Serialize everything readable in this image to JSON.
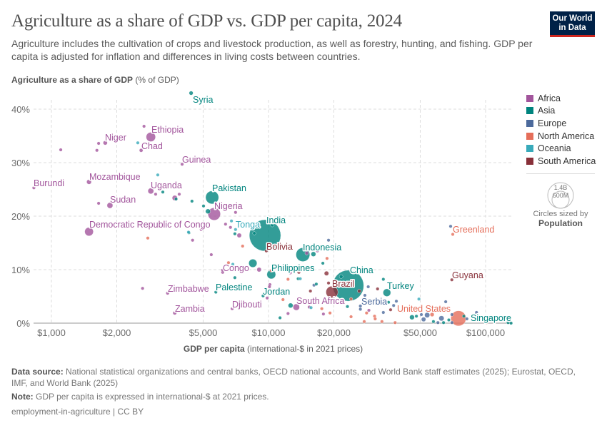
{
  "header": {
    "title": "Agriculture as a share of GDP vs. GDP per capita, 2024",
    "subtitle": "Agriculture includes the cultivation of crops and livestock production, as well as forestry, hunting, and fishing. GDP per capita is adjusted for inflation and differences in living costs between countries.",
    "logo_line1": "Our World",
    "logo_line2": "in Data"
  },
  "legend": {
    "items": [
      {
        "label": "Africa",
        "color": "#a2559c"
      },
      {
        "label": "Asia",
        "color": "#00847e"
      },
      {
        "label": "Europe",
        "color": "#4c6a9c"
      },
      {
        "label": "North America",
        "color": "#e56e5a"
      },
      {
        "label": "Oceania",
        "color": "#38aaba"
      },
      {
        "label": "South America",
        "color": "#883039"
      }
    ],
    "size_big": "1.4B",
    "size_small": "600M",
    "size_caption": "Circles sized by",
    "size_variable": "Population"
  },
  "footer": {
    "source_label": "Data source:",
    "source_text": "National statistical organizations and central banks, OECD national accounts, and World Bank staff estimates (2025); Eurostat, OECD, IMF, and World Bank (2025)",
    "note_label": "Note:",
    "note_text": "GDP per capita is expressed in international-$ at 2021 prices.",
    "slug": "employment-in-agriculture | CC BY"
  },
  "chart_data": {
    "type": "scatter",
    "title": "Agriculture as a share of GDP vs. GDP per capita, 2024",
    "ylabel_bold": "Agriculture as a share of GDP",
    "ylabel_unit": "(% of GDP)",
    "xlabel_bold": "GDP per capita",
    "xlabel_unit": "(international-$ in 2021 prices)",
    "x_scale": "log",
    "xlim": [
      820,
      135000
    ],
    "ylim": [
      0,
      43
    ],
    "x_ticks": [
      1000,
      2000,
      5000,
      10000,
      20000,
      50000,
      100000
    ],
    "x_tick_labels": [
      "$1,000",
      "$2,000",
      "$5,000",
      "$10,000",
      "$20,000",
      "$50,000",
      "$100,000"
    ],
    "y_ticks": [
      0,
      10,
      20,
      30,
      40
    ],
    "y_tick_labels": [
      "0%",
      "10%",
      "20%",
      "30%",
      "40%"
    ],
    "grid": true,
    "legend_position": "right",
    "size_variable": "population (millions)",
    "labeled_points": [
      {
        "name": "Syria",
        "region": 1,
        "gdp": 4400,
        "share": 43.0,
        "pop": 24
      },
      {
        "name": "Ethiopia",
        "region": 0,
        "gdp": 2870,
        "share": 34.8,
        "pop": 130
      },
      {
        "name": "Niger",
        "region": 0,
        "gdp": 1770,
        "share": 33.7,
        "pop": 27
      },
      {
        "name": "Chad",
        "region": 0,
        "gdp": 2590,
        "share": 32.3,
        "pop": 20
      },
      {
        "name": "Guinea",
        "region": 0,
        "gdp": 4000,
        "share": 29.7,
        "pop": 14
      },
      {
        "name": "Burundi",
        "region": 0,
        "gdp": 830,
        "share": 25.3,
        "pop": 14
      },
      {
        "name": "Mozambique",
        "region": 0,
        "gdp": 1490,
        "share": 26.4,
        "pop": 34
      },
      {
        "name": "Uganda",
        "region": 0,
        "gdp": 2870,
        "share": 24.7,
        "pop": 50
      },
      {
        "name": "Sudan",
        "region": 0,
        "gdp": 1860,
        "share": 22.0,
        "pop": 50
      },
      {
        "name": "Pakistan",
        "region": 1,
        "gdp": 5500,
        "share": 23.5,
        "pop": 250
      },
      {
        "name": "Nigeria",
        "region": 0,
        "gdp": 5620,
        "share": 20.4,
        "pop": 230
      },
      {
        "name": "Democratic Republic of Congo",
        "region": 0,
        "gdp": 1490,
        "share": 17.1,
        "pop": 110
      },
      {
        "name": "Tonga",
        "region": 4,
        "gdp": 6750,
        "share": 19.1,
        "pop": 0.1
      },
      {
        "name": "India",
        "region": 1,
        "gdp": 9640,
        "share": 16.4,
        "pop": 1450
      },
      {
        "name": "Bolivia",
        "region": 5,
        "gdp": 9770,
        "share": 13.5,
        "pop": 12
      },
      {
        "name": "Indonesia",
        "region": 1,
        "gdp": 14400,
        "share": 12.8,
        "pop": 280
      },
      {
        "name": "Congo",
        "region": 0,
        "gdp": 6150,
        "share": 9.9,
        "pop": 6
      },
      {
        "name": "Philippines",
        "region": 1,
        "gdp": 10300,
        "share": 9.1,
        "pop": 115
      },
      {
        "name": "Zimbabwe",
        "region": 0,
        "gdp": 3430,
        "share": 5.6,
        "pop": 17
      },
      {
        "name": "Palestine",
        "region": 1,
        "gdp": 5720,
        "share": 5.8,
        "pop": 5
      },
      {
        "name": "Jordan",
        "region": 1,
        "gdp": 9440,
        "share": 5.1,
        "pop": 11
      },
      {
        "name": "Zambia",
        "region": 0,
        "gdp": 3700,
        "share": 1.9,
        "pop": 21
      },
      {
        "name": "Djibouti",
        "region": 0,
        "gdp": 6800,
        "share": 2.7,
        "pop": 1
      },
      {
        "name": "South Africa",
        "region": 0,
        "gdp": 13430,
        "share": 3.0,
        "pop": 63
      },
      {
        "name": "China",
        "region": 1,
        "gdp": 23300,
        "share": 7.0,
        "pop": 1410
      },
      {
        "name": "Brazil",
        "region": 5,
        "gdp": 19600,
        "share": 5.8,
        "pop": 210
      },
      {
        "name": "Turkey",
        "region": 1,
        "gdp": 35100,
        "share": 5.7,
        "pop": 87
      },
      {
        "name": "Serbia",
        "region": 2,
        "gdp": 26500,
        "share": 2.6,
        "pop": 7
      },
      {
        "name": "Greenland",
        "region": 3,
        "gdp": 70600,
        "share": 16.6,
        "pop": 0.06
      },
      {
        "name": "Guyana",
        "region": 5,
        "gdp": 69900,
        "share": 8.1,
        "pop": 0.8
      },
      {
        "name": "United States",
        "region": 3,
        "gdp": 75000,
        "share": 0.9,
        "pop": 340
      },
      {
        "name": "Singapore",
        "region": 1,
        "gdp": 131000,
        "share": 0.0,
        "pop": 6
      }
    ],
    "other_points_fields": [
      "gdp",
      "share",
      "pop",
      "region"
    ],
    "other_points": [
      [
        1104,
        32.4,
        10,
        0
      ],
      [
        1650,
        33.6,
        10,
        0
      ],
      [
        1620,
        32.3,
        10,
        0
      ],
      [
        2500,
        33.7,
        1,
        4
      ],
      [
        2670,
        36.8,
        10,
        0
      ],
      [
        3090,
        27.7,
        1,
        4
      ],
      [
        1650,
        22.4,
        15,
        0
      ],
      [
        3020,
        24.1,
        10,
        0
      ],
      [
        3260,
        24.5,
        5,
        1
      ],
      [
        3880,
        24.1,
        10,
        0
      ],
      [
        3700,
        23.4,
        40,
        0
      ],
      [
        3750,
        23.2,
        6,
        1
      ],
      [
        4440,
        22.8,
        5,
        1
      ],
      [
        5020,
        21.9,
        10,
        1
      ],
      [
        5260,
        20.9,
        35,
        1
      ],
      [
        7050,
        20.7,
        15,
        0
      ],
      [
        6340,
        18.5,
        8,
        0
      ],
      [
        6680,
        17.9,
        15,
        0
      ],
      [
        7050,
        17.5,
        1,
        4
      ],
      [
        7330,
        16.4,
        30,
        0
      ],
      [
        7000,
        16.7,
        5,
        1
      ],
      [
        8600,
        16.8,
        5,
        1
      ],
      [
        10400,
        18.3,
        10,
        1
      ],
      [
        4280,
        17.0,
        1,
        4
      ],
      [
        4300,
        16.9,
        5,
        1
      ],
      [
        4900,
        17.5,
        10,
        0
      ],
      [
        4470,
        15.5,
        10,
        0
      ],
      [
        2780,
        15.9,
        8,
        3
      ],
      [
        2540,
        18.8,
        3,
        0
      ],
      [
        7600,
        14.4,
        6,
        3
      ],
      [
        5450,
        12.8,
        8,
        0
      ],
      [
        8470,
        11.2,
        100,
        1
      ],
      [
        9050,
        10.0,
        30,
        0
      ],
      [
        6150,
        9.5,
        8,
        0
      ],
      [
        6540,
        11.3,
        3,
        3
      ],
      [
        6850,
        11.0,
        1,
        4
      ],
      [
        7000,
        8.5,
        5,
        1
      ],
      [
        13800,
        9.5,
        6,
        5
      ],
      [
        12300,
        8.2,
        6,
        3
      ],
      [
        13700,
        8.3,
        5,
        1
      ],
      [
        14000,
        8.3,
        1,
        4
      ],
      [
        10300,
        9.8,
        3,
        3
      ],
      [
        12600,
        9.4,
        3,
        0
      ],
      [
        10150,
        7.2,
        8,
        0
      ],
      [
        10100,
        6.8,
        8,
        0
      ],
      [
        2630,
        6.5,
        8,
        0
      ],
      [
        9860,
        4.7,
        6,
        0
      ],
      [
        11660,
        4.4,
        6,
        3
      ],
      [
        12640,
        3.3,
        35,
        1
      ],
      [
        11300,
        1.0,
        5,
        1
      ],
      [
        12300,
        1.8,
        8,
        0
      ],
      [
        18900,
        15.5,
        5,
        2
      ],
      [
        18600,
        12.1,
        6,
        3
      ],
      [
        17800,
        11.2,
        5,
        1
      ],
      [
        16100,
        12.9,
        35,
        1
      ],
      [
        15000,
        13.1,
        20,
        0
      ],
      [
        16800,
        13.5,
        10,
        0
      ],
      [
        18500,
        9.3,
        30,
        5
      ],
      [
        18900,
        7.5,
        5,
        5
      ],
      [
        16600,
        7.3,
        5,
        1
      ],
      [
        16200,
        7.1,
        8,
        2
      ],
      [
        15600,
        6.0,
        10,
        5
      ],
      [
        21600,
        8.7,
        20,
        1
      ],
      [
        26200,
        6.0,
        20,
        5
      ],
      [
        28800,
        6.8,
        5,
        2
      ],
      [
        31800,
        6.4,
        5,
        5
      ],
      [
        33800,
        8.2,
        15,
        1
      ],
      [
        35700,
        3.9,
        5,
        1
      ],
      [
        27800,
        5.2,
        5,
        2
      ],
      [
        26500,
        3.2,
        5,
        2
      ],
      [
        29000,
        2.4,
        5,
        0
      ],
      [
        28300,
        1.9,
        5,
        3
      ],
      [
        30800,
        1.3,
        5,
        3
      ],
      [
        31000,
        0.8,
        5,
        3
      ],
      [
        33300,
        0.3,
        5,
        3
      ],
      [
        27600,
        0.3,
        5,
        3
      ],
      [
        24000,
        1.2,
        5,
        3
      ],
      [
        23100,
        3.1,
        5,
        1
      ],
      [
        24000,
        4.5,
        5,
        3
      ],
      [
        19200,
        1.9,
        5,
        3
      ],
      [
        17900,
        1.7,
        5,
        0
      ],
      [
        17600,
        2.7,
        5,
        3
      ],
      [
        15700,
        2.9,
        3,
        4
      ],
      [
        15400,
        3.0,
        5,
        0
      ],
      [
        33800,
        2.0,
        8,
        2
      ],
      [
        36500,
        2.5,
        5,
        5
      ],
      [
        37700,
        3.3,
        8,
        2
      ],
      [
        38800,
        4.1,
        5,
        2
      ],
      [
        38300,
        0.1,
        5,
        3
      ],
      [
        49300,
        4.5,
        3,
        4
      ],
      [
        41200,
        2.3,
        5,
        2
      ],
      [
        45800,
        1.1,
        35,
        1
      ],
      [
        48000,
        1.3,
        10,
        1
      ],
      [
        50600,
        1.6,
        15,
        2
      ],
      [
        51800,
        0.7,
        30,
        2
      ],
      [
        53800,
        1.5,
        40,
        2
      ],
      [
        56700,
        1.6,
        25,
        3
      ],
      [
        60300,
        0.1,
        5,
        2
      ],
      [
        57500,
        0.3,
        5,
        1
      ],
      [
        62600,
        0.9,
        40,
        2
      ],
      [
        65500,
        4.0,
        5,
        2
      ],
      [
        64000,
        0.1,
        5,
        1
      ],
      [
        70000,
        1.6,
        5,
        2
      ],
      [
        70000,
        0.1,
        5,
        2
      ],
      [
        67700,
        0.6,
        5,
        1
      ],
      [
        79400,
        1.3,
        5,
        1
      ],
      [
        82000,
        0.8,
        8,
        2
      ],
      [
        90800,
        2.0,
        5,
        2
      ],
      [
        69000,
        18.1,
        0.4,
        2
      ],
      [
        127000,
        0.1,
        1,
        1
      ],
      [
        101000,
        0.1,
        1,
        3
      ]
    ]
  }
}
